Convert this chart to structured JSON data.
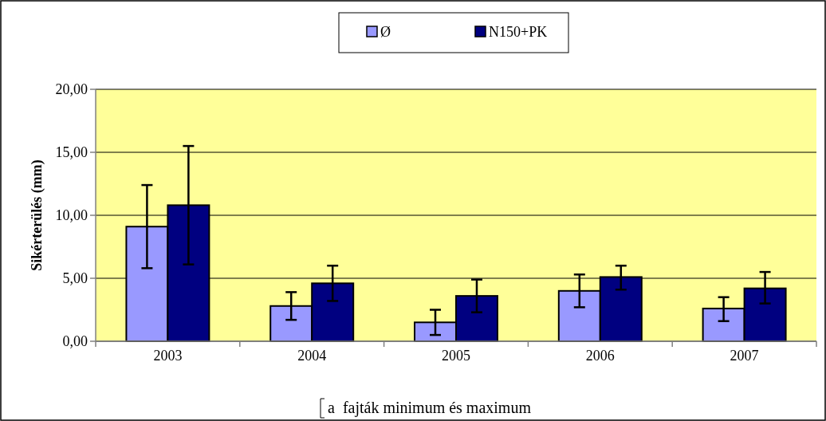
{
  "chart_data": {
    "type": "bar",
    "ylabel": "Sikérterülés (mm)",
    "categories": [
      "2003",
      "2004",
      "2005",
      "2006",
      "2007"
    ],
    "series": [
      {
        "name": "Ø",
        "color": "#9999ff",
        "values": [
          9.1,
          2.8,
          1.5,
          4.0,
          2.6
        ],
        "errors": [
          [
            5.8,
            12.4
          ],
          [
            1.7,
            3.9
          ],
          [
            0.5,
            2.5
          ],
          [
            2.7,
            5.3
          ],
          [
            1.6,
            3.5
          ]
        ]
      },
      {
        "name": "N150+PK",
        "color": "#000080",
        "values": [
          10.8,
          4.6,
          3.6,
          5.1,
          4.2
        ],
        "errors": [
          [
            6.1,
            15.5
          ],
          [
            3.2,
            6.0
          ],
          [
            2.3,
            4.9
          ],
          [
            4.1,
            6.0
          ],
          [
            3.0,
            5.5
          ]
        ]
      }
    ],
    "ylim": [
      0,
      20
    ],
    "yticks": [
      {
        "value": 0,
        "label": "0,00"
      },
      {
        "value": 5,
        "label": "5,00"
      },
      {
        "value": 10,
        "label": "10,00"
      },
      {
        "value": 15,
        "label": "15,00"
      },
      {
        "value": 20,
        "label": "20,00"
      }
    ],
    "grid": "y",
    "legend": "top",
    "annotations": [
      "a  fajták minimum és maximum"
    ]
  }
}
